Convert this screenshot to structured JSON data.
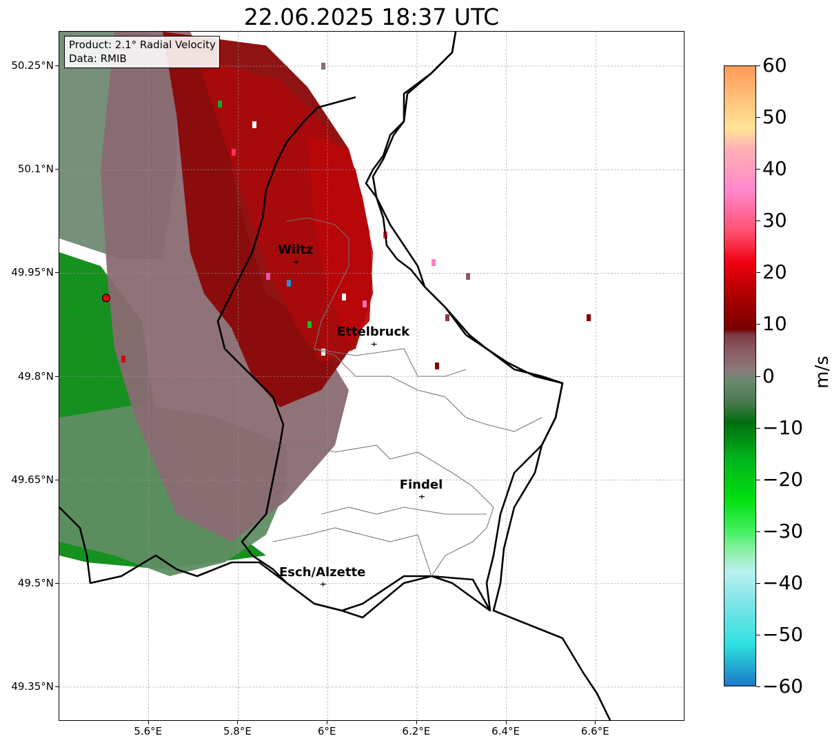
{
  "title": "22.06.2025 18:37 UTC",
  "product_box": {
    "line1": "Product: 2.1° Radial Velocity",
    "line2": "Data: RMIB"
  },
  "map": {
    "lon_range": [
      5.4,
      6.8
    ],
    "lat_range": [
      49.3,
      50.3
    ],
    "lat_ticks": [
      {
        "value": 50.25,
        "label": "50.25°N"
      },
      {
        "value": 50.1,
        "label": "50.1°N"
      },
      {
        "value": 49.95,
        "label": "49.95°N"
      },
      {
        "value": 49.8,
        "label": "49.8°N"
      },
      {
        "value": 49.65,
        "label": "49.65°N"
      },
      {
        "value": 49.5,
        "label": "49.5°N"
      },
      {
        "value": 49.35,
        "label": "49.35°N"
      }
    ],
    "lon_ticks": [
      {
        "value": 5.6,
        "label": "5.6°E"
      },
      {
        "value": 5.8,
        "label": "5.8°E"
      },
      {
        "value": 6.0,
        "label": "6°E"
      },
      {
        "value": 6.2,
        "label": "6.2°E"
      },
      {
        "value": 6.4,
        "label": "6.4°E"
      },
      {
        "value": 6.6,
        "label": "6.6°E"
      }
    ],
    "gridlines": true,
    "radar_site": {
      "lon": 5.505,
      "lat": 49.914,
      "color": "#e8000b"
    },
    "cities": [
      {
        "name": "Wiltz",
        "lon": 5.93,
        "lat": 49.966
      },
      {
        "name": "Ettelbruck",
        "lon": 6.104,
        "lat": 49.847
      },
      {
        "name": "Findel",
        "lon": 6.211,
        "lat": 49.626
      },
      {
        "name": "Esch/Alzette",
        "lon": 5.99,
        "lat": 49.499
      }
    ]
  },
  "colorbar": {
    "label": "m/s",
    "min": -60,
    "max": 60,
    "ticks": [
      {
        "value": 60,
        "label": "60"
      },
      {
        "value": 50,
        "label": "50"
      },
      {
        "value": 40,
        "label": "40"
      },
      {
        "value": 30,
        "label": "30"
      },
      {
        "value": 20,
        "label": "20"
      },
      {
        "value": 10,
        "label": "10"
      },
      {
        "value": 0,
        "label": "0"
      },
      {
        "value": -10,
        "label": "−10"
      },
      {
        "value": -20,
        "label": "−20"
      },
      {
        "value": -30,
        "label": "−30"
      },
      {
        "value": -40,
        "label": "−40"
      },
      {
        "value": -50,
        "label": "−50"
      },
      {
        "value": -60,
        "label": "−60"
      }
    ],
    "stops": [
      {
        "value": -60,
        "color": "#1f78c8"
      },
      {
        "value": -56,
        "color": "#22aed0"
      },
      {
        "value": -52,
        "color": "#2ee0e0"
      },
      {
        "value": -44,
        "color": "#7ee4e6"
      },
      {
        "value": -38,
        "color": "#b8f0f0"
      },
      {
        "value": -34,
        "color": "#8ef0a8"
      },
      {
        "value": -30,
        "color": "#44f060"
      },
      {
        "value": -24,
        "color": "#00e010"
      },
      {
        "value": -16,
        "color": "#00b41c"
      },
      {
        "value": -9,
        "color": "#006e10"
      },
      {
        "value": -5,
        "color": "#4c7a50"
      },
      {
        "value": -1,
        "color": "#6a8a6e"
      },
      {
        "value": 1,
        "color": "#8a7a7a"
      },
      {
        "value": 5,
        "color": "#8a5a62"
      },
      {
        "value": 8,
        "color": "#7a3a44"
      },
      {
        "value": 9,
        "color": "#780000"
      },
      {
        "value": 16,
        "color": "#b00000"
      },
      {
        "value": 22,
        "color": "#f00010"
      },
      {
        "value": 28,
        "color": "#ff5070"
      },
      {
        "value": 36,
        "color": "#ff88cc"
      },
      {
        "value": 44,
        "color": "#ffb0b4"
      },
      {
        "value": 48,
        "color": "#ffe498"
      },
      {
        "value": 60,
        "color": "#ff9a58"
      }
    ]
  }
}
